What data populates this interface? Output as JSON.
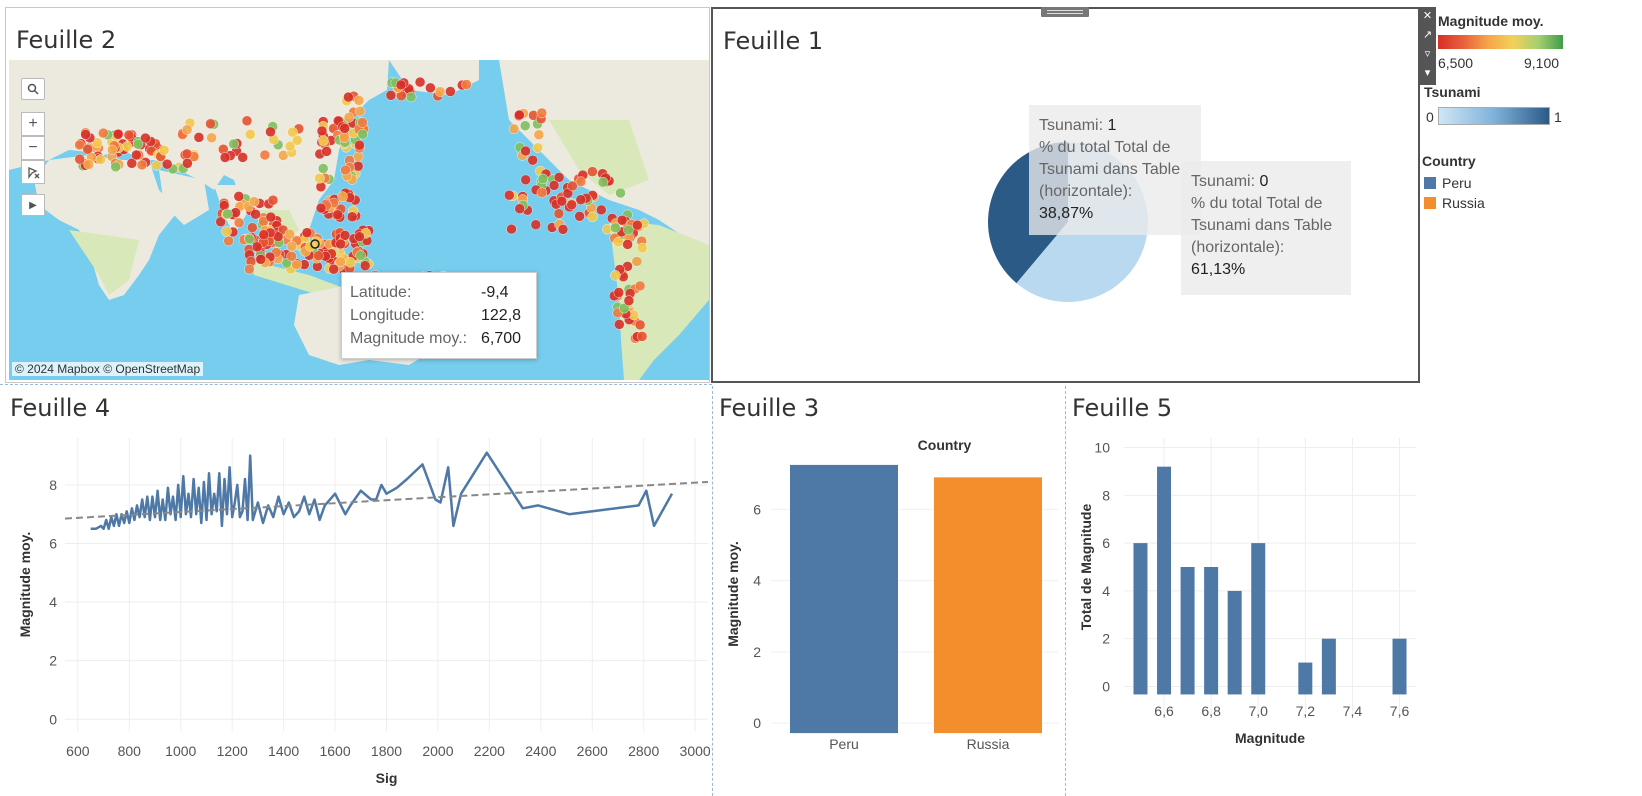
{
  "sheets": {
    "s2": {
      "title": "Feuille 2"
    },
    "s1": {
      "title": "Feuille 1"
    },
    "s4": {
      "title": "Feuille 4"
    },
    "s3": {
      "title": "Feuille 3"
    },
    "s5": {
      "title": "Feuille 5"
    }
  },
  "map": {
    "attribution": "© 2024 Mapbox © OpenStreetMap",
    "controls": {
      "search": "search-icon",
      "zoom_in": "+",
      "zoom_out": "−",
      "select": "lasso-select-icon",
      "expand": "play-arrow-icon"
    },
    "tooltip": {
      "rows": [
        {
          "label": "Latitude:",
          "value": "-9,4"
        },
        {
          "label": "Longitude:",
          "value": "122,8"
        },
        {
          "label": "Magnitude moy.:",
          "value": "6,700"
        }
      ]
    },
    "colors": {
      "ocean": "#76cdee",
      "land": "#eceadf",
      "green_land": "#d8e8b8"
    }
  },
  "pie": {
    "tip1": {
      "label1": "Tsunami: ",
      "val1": "1",
      "label2": "% du total Total de Tsunami dans Table (horizontale):",
      "val2": "38,87%"
    },
    "tip0": {
      "label1": "Tsunami: ",
      "val1": "0",
      "label2": "% du total Total de Tsunami dans Table (horizontale):",
      "val2": "61,13%"
    }
  },
  "legend": {
    "magnitude": {
      "title": "Magnitude moy.",
      "min": "6,500",
      "max": "9,100"
    },
    "tsunami": {
      "title": "Tsunami",
      "min": "0",
      "max": "1"
    },
    "country": {
      "title": "Country",
      "items": [
        {
          "label": "Peru",
          "color": "#4e79a7"
        },
        {
          "label": "Russia",
          "color": "#f28e2b"
        }
      ]
    }
  },
  "toolbar": {
    "close": "close-icon",
    "popout": "popout-icon",
    "filter": "filter-icon",
    "menu": "menu-arrow-icon"
  },
  "chart_data": [
    {
      "type": "pie",
      "title": "",
      "slices": [
        {
          "label": "Tsunami 1",
          "value": 38.87,
          "color": "#2c5a87"
        },
        {
          "label": "Tsunami 0",
          "value": 61.13,
          "color": "#b8d9f0"
        }
      ]
    },
    {
      "type": "line",
      "xlabel": "Sig",
      "ylabel": "Magnitude moy.",
      "xlim": [
        550,
        3050
      ],
      "ylim": [
        -0.4,
        9.6
      ],
      "xticks": [
        600,
        800,
        1000,
        1200,
        1400,
        1600,
        1800,
        2000,
        2200,
        2400,
        2600,
        2800,
        3000
      ],
      "yticks": [
        0,
        2,
        4,
        6,
        8
      ],
      "series": [
        {
          "x": [
            650,
            670,
            690,
            700,
            710,
            720,
            730,
            740,
            750,
            760,
            770,
            780,
            790,
            800,
            810,
            820,
            830,
            840,
            850,
            860,
            870,
            880,
            890,
            900,
            910,
            920,
            930,
            940,
            950,
            960,
            970,
            980,
            990,
            1000,
            1010,
            1020,
            1030,
            1040,
            1050,
            1060,
            1070,
            1080,
            1090,
            1100,
            1110,
            1120,
            1130,
            1140,
            1150,
            1160,
            1170,
            1180,
            1190,
            1200,
            1210,
            1220,
            1230,
            1240,
            1250,
            1260,
            1270,
            1280,
            1300,
            1320,
            1340,
            1360,
            1380,
            1400,
            1420,
            1440,
            1460,
            1480,
            1500,
            1520,
            1540,
            1560,
            1600,
            1640,
            1660,
            1700,
            1740,
            1760,
            1780,
            1800,
            1840,
            1880,
            1940,
            1990,
            2010,
            2040,
            2060,
            2090,
            2190,
            2330,
            2390,
            2510,
            2780,
            2810,
            2840,
            2910
          ],
          "y": [
            6.5,
            6.5,
            6.6,
            6.5,
            6.8,
            6.5,
            6.9,
            6.6,
            7.0,
            6.6,
            7.0,
            6.7,
            7.1,
            6.7,
            7.2,
            6.8,
            7.3,
            6.9,
            7.5,
            6.9,
            7.6,
            6.8,
            7.6,
            6.9,
            7.8,
            6.8,
            7.5,
            6.8,
            7.9,
            7.0,
            7.6,
            6.8,
            8.0,
            6.9,
            8.3,
            7.0,
            7.7,
            6.9,
            8.2,
            7.0,
            7.9,
            6.7,
            8.1,
            6.8,
            8.4,
            7.0,
            7.7,
            7.1,
            8.4,
            6.6,
            8.2,
            7.0,
            8.6,
            6.9,
            7.4,
            8.0,
            6.9,
            7.1,
            8.2,
            6.8,
            9.0,
            6.8,
            7.4,
            6.7,
            7.3,
            6.9,
            7.6,
            7.0,
            7.4,
            6.9,
            7.1,
            7.6,
            7.0,
            7.5,
            6.8,
            7.3,
            7.7,
            7.0,
            7.3,
            7.8,
            7.5,
            7.5,
            8.0,
            7.7,
            7.9,
            8.2,
            8.7,
            7.5,
            7.4,
            8.6,
            6.6,
            7.7,
            9.1,
            7.2,
            7.3,
            7.0,
            7.3,
            7.8,
            6.6,
            7.7
          ]
        }
      ],
      "trend": {
        "x": [
          550,
          3050
        ],
        "y": [
          6.85,
          8.1
        ]
      }
    },
    {
      "type": "bar",
      "title": "Country",
      "ylabel": "Magnitude moy.",
      "categories": [
        "Peru",
        "Russia"
      ],
      "values": [
        7.25,
        6.9
      ],
      "colors": [
        "#4e79a7",
        "#f28e2b"
      ],
      "ylim": [
        -0.25,
        7.5
      ],
      "yticks": [
        0,
        2,
        4,
        6
      ]
    },
    {
      "type": "bar",
      "xlabel": "Magnitude",
      "ylabel": "Total de Magnitude",
      "x": [
        6.5,
        6.6,
        6.7,
        6.8,
        6.9,
        7.0,
        7.2,
        7.3,
        7.6
      ],
      "values": [
        6,
        9.2,
        5,
        5,
        4,
        6,
        1,
        2,
        2
      ],
      "xlim": [
        6.43,
        7.67
      ],
      "ylim": [
        -0.4,
        10.4
      ],
      "xticks": [
        "6,6",
        "6,8",
        "7,0",
        "7,2",
        "7,4",
        "7,6"
      ],
      "xtick_values": [
        6.6,
        6.8,
        7.0,
        7.2,
        7.4,
        7.6
      ],
      "yticks": [
        0,
        2,
        4,
        6,
        8,
        10
      ],
      "color": "#4e79a7"
    }
  ]
}
